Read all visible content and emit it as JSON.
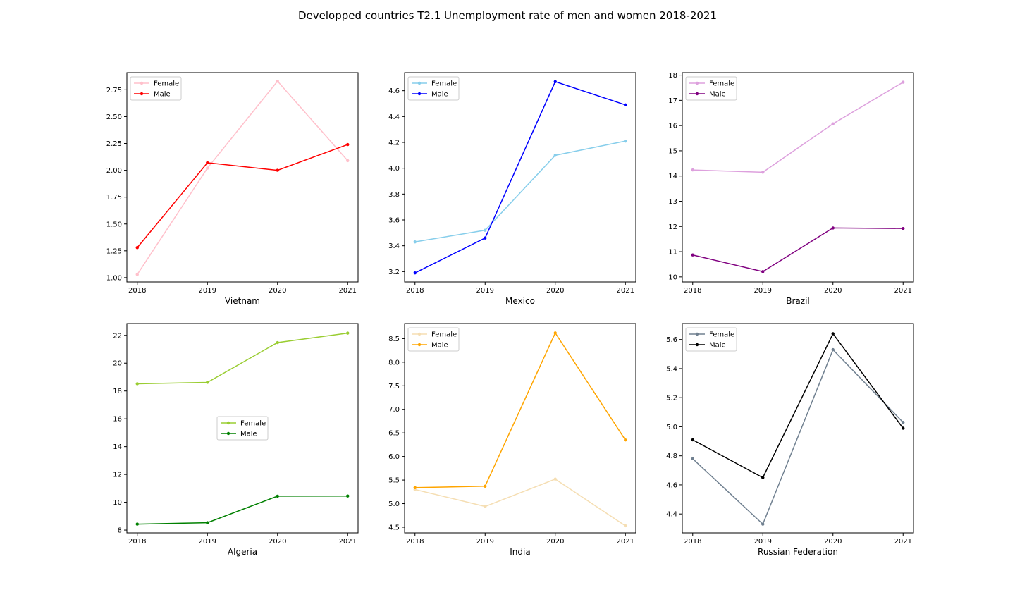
{
  "figure": {
    "title": "Developped countries T2.1 Unemployment rate of men and women 2018-2021"
  },
  "chart_data": [
    {
      "type": "line",
      "title": "",
      "xlabel": "Vietnam",
      "ylabel": "",
      "x": [
        "2018",
        "2019",
        "2020",
        "2021"
      ],
      "ylim": [
        0.96,
        2.91
      ],
      "yticks": [
        "1.00",
        "1.25",
        "1.50",
        "1.75",
        "2.00",
        "2.25",
        "2.50",
        "2.75"
      ],
      "legend": "upper left",
      "grid": false,
      "series": [
        {
          "name": "Female",
          "color": "#ffc0cb",
          "values": [
            1.03,
            2.02,
            2.83,
            2.09
          ]
        },
        {
          "name": "Male",
          "color": "#ff0000",
          "values": [
            1.28,
            2.07,
            2.0,
            2.24
          ]
        }
      ]
    },
    {
      "type": "line",
      "title": "",
      "xlabel": "Mexico",
      "ylabel": "",
      "x": [
        "2018",
        "2019",
        "2020",
        "2021"
      ],
      "ylim": [
        3.12,
        4.74
      ],
      "yticks": [
        "3.2",
        "3.4",
        "3.6",
        "3.8",
        "4.0",
        "4.2",
        "4.4",
        "4.6"
      ],
      "legend": "upper left",
      "grid": false,
      "series": [
        {
          "name": "Female",
          "color": "#87ceeb",
          "values": [
            3.43,
            3.52,
            4.1,
            4.21
          ]
        },
        {
          "name": "Male",
          "color": "#0000ff",
          "values": [
            3.19,
            3.46,
            4.67,
            4.49
          ]
        }
      ]
    },
    {
      "type": "line",
      "title": "",
      "xlabel": "Brazil",
      "ylabel": "",
      "x": [
        "2018",
        "2019",
        "2020",
        "2021"
      ],
      "ylim": [
        9.8,
        18.1
      ],
      "yticks": [
        "10",
        "11",
        "12",
        "13",
        "14",
        "15",
        "16",
        "17",
        "18"
      ],
      "legend": "upper left",
      "grid": false,
      "series": [
        {
          "name": "Female",
          "color": "#dda0dd",
          "values": [
            14.24,
            14.15,
            16.07,
            17.72
          ]
        },
        {
          "name": "Male",
          "color": "#800080",
          "values": [
            10.87,
            10.21,
            11.94,
            11.92
          ]
        }
      ]
    },
    {
      "type": "line",
      "title": "",
      "xlabel": "Algeria",
      "ylabel": "",
      "x": [
        "2018",
        "2019",
        "2020",
        "2021"
      ],
      "ylim": [
        7.8,
        22.85
      ],
      "yticks": [
        "8",
        "10",
        "12",
        "14",
        "16",
        "18",
        "20",
        "22"
      ],
      "legend": "center",
      "grid": false,
      "series": [
        {
          "name": "Female",
          "color": "#9acd32",
          "values": [
            18.52,
            18.62,
            21.48,
            22.16
          ]
        },
        {
          "name": "Male",
          "color": "#008000",
          "values": [
            8.43,
            8.53,
            10.44,
            10.45
          ]
        }
      ]
    },
    {
      "type": "line",
      "title": "",
      "xlabel": "India",
      "ylabel": "",
      "x": [
        "2018",
        "2019",
        "2020",
        "2021"
      ],
      "ylim": [
        4.38,
        8.82
      ],
      "yticks": [
        "4.5",
        "5.0",
        "5.5",
        "6.0",
        "6.5",
        "7.0",
        "7.5",
        "8.0",
        "8.5"
      ],
      "legend": "upper left",
      "grid": false,
      "series": [
        {
          "name": "Female",
          "color": "#f5deb3",
          "values": [
            5.3,
            4.94,
            5.52,
            4.53
          ]
        },
        {
          "name": "Male",
          "color": "#ffa500",
          "values": [
            5.34,
            5.37,
            8.62,
            6.35
          ]
        }
      ]
    },
    {
      "type": "line",
      "title": "",
      "xlabel": "Russian Federation",
      "ylabel": "",
      "x": [
        "2018",
        "2019",
        "2020",
        "2021"
      ],
      "ylim": [
        4.27,
        5.71
      ],
      "yticks": [
        "4.4",
        "4.6",
        "4.8",
        "5.0",
        "5.2",
        "5.4",
        "5.6"
      ],
      "legend": "upper left",
      "grid": false,
      "series": [
        {
          "name": "Female",
          "color": "#708090",
          "values": [
            4.78,
            4.33,
            5.53,
            5.03
          ]
        },
        {
          "name": "Male",
          "color": "#000000",
          "values": [
            4.91,
            4.65,
            5.64,
            4.99
          ]
        }
      ]
    }
  ]
}
